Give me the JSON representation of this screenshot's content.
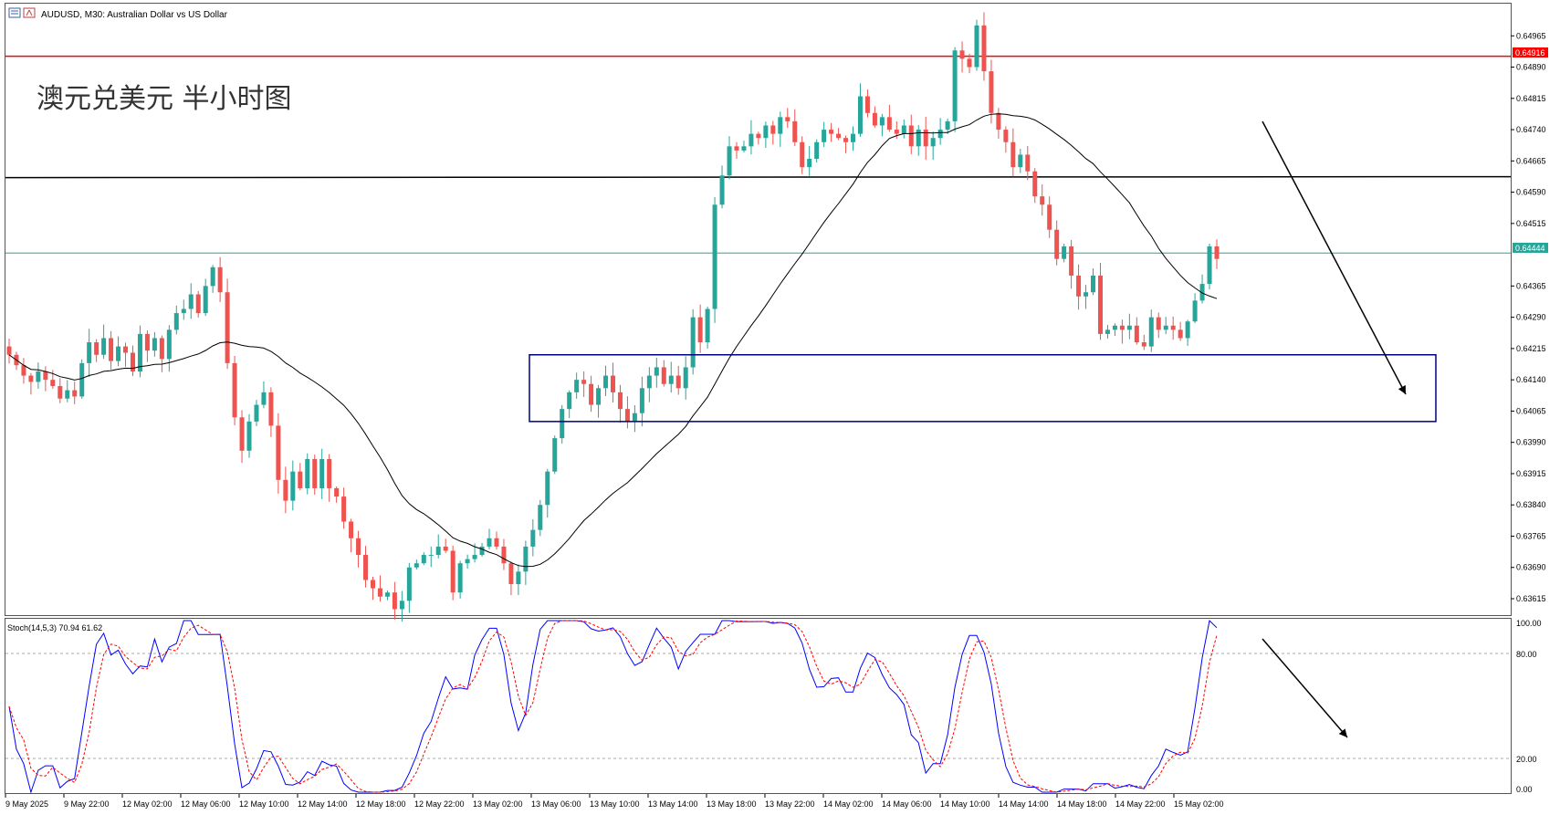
{
  "header": {
    "symbol_line": "AUDUSD, M30:  Australian Dollar vs US Dollar",
    "icon_name": "chart-window-icon"
  },
  "overlay_title": "澳元兑美元 半小时图",
  "indicator": {
    "label": "Stoch(14,5,3) 70.94 61.62",
    "k_color": "#0000ff",
    "d_color": "#ff0000",
    "levels": [
      80,
      20
    ],
    "axis_ticks": [
      "100.00",
      "80.00",
      "20.00",
      "0.00"
    ]
  },
  "price_axis": {
    "ticks": [
      "0.64965",
      "0.64890",
      "0.64815",
      "0.64740",
      "0.64665",
      "0.64590",
      "0.64515",
      "0.64365",
      "0.64290",
      "0.64215",
      "0.64140",
      "0.64065",
      "0.63990",
      "0.63915",
      "0.63840",
      "0.63765",
      "0.63690",
      "0.63615"
    ],
    "resistance_label": "0.64916",
    "current_label": "0.64444"
  },
  "time_axis": {
    "labels": [
      "9 May 2025",
      "9 May 22:00",
      "12 May 02:00",
      "12 May 06:00",
      "12 May 10:00",
      "12 May 14:00",
      "12 May 18:00",
      "12 May 22:00",
      "13 May 02:00",
      "13 May 06:00",
      "13 May 10:00",
      "13 May 14:00",
      "13 May 18:00",
      "13 May 22:00",
      "14 May 02:00",
      "14 May 06:00",
      "14 May 10:00",
      "14 May 14:00",
      "14 May 18:00",
      "14 May 22:00",
      "15 May 02:00"
    ]
  },
  "chart_data": {
    "type": "candlestick",
    "symbol": "AUDUSD",
    "timeframe": "M30",
    "colors": {
      "up": "#26a69a",
      "down": "#ef5350",
      "ma": "#000000",
      "resistance": "#ff0000",
      "current": "#26a69a",
      "box": "#000080",
      "arrow": "#000000"
    },
    "ylim": [
      0.6358,
      0.6504
    ],
    "levels": {
      "resistance": 0.64916,
      "black_line": 0.64625,
      "current": 0.64444
    },
    "box": {
      "top": 0.642,
      "bottom": 0.6404
    },
    "closes": [
      0.642,
      0.64175,
      0.6415,
      0.64135,
      0.6416,
      0.6414,
      0.64125,
      0.64095,
      0.64115,
      0.641,
      0.6418,
      0.6423,
      0.642,
      0.6424,
      0.64185,
      0.6422,
      0.64205,
      0.6416,
      0.6425,
      0.6421,
      0.6424,
      0.6419,
      0.6426,
      0.643,
      0.6431,
      0.64345,
      0.643,
      0.64365,
      0.6441,
      0.6435,
      0.6418,
      0.6405,
      0.6397,
      0.6404,
      0.6408,
      0.6411,
      0.6403,
      0.639,
      0.6385,
      0.6392,
      0.6388,
      0.6395,
      0.6388,
      0.6395,
      0.6388,
      0.6386,
      0.638,
      0.6376,
      0.6372,
      0.6366,
      0.6364,
      0.6362,
      0.6363,
      0.6359,
      0.6361,
      0.6369,
      0.637,
      0.6372,
      0.6372,
      0.6374,
      0.6373,
      0.6363,
      0.637,
      0.6371,
      0.6372,
      0.6374,
      0.6376,
      0.6374,
      0.637,
      0.6365,
      0.6368,
      0.6374,
      0.6378,
      0.6384,
      0.6392,
      0.64,
      0.6407,
      0.6411,
      0.6414,
      0.6413,
      0.6408,
      0.6412,
      0.6415,
      0.6411,
      0.6407,
      0.6404,
      0.6406,
      0.6412,
      0.6415,
      0.6417,
      0.6413,
      0.6415,
      0.6412,
      0.6417,
      0.6429,
      0.6423,
      0.6431,
      0.6456,
      0.6463,
      0.647,
      0.6469,
      0.647,
      0.6473,
      0.6472,
      0.6475,
      0.6473,
      0.6477,
      0.6476,
      0.6471,
      0.6465,
      0.6467,
      0.6471,
      0.6474,
      0.6473,
      0.6472,
      0.6471,
      0.6473,
      0.6482,
      0.6478,
      0.6475,
      0.6477,
      0.6474,
      0.6473,
      0.6475,
      0.647,
      0.6474,
      0.647,
      0.6472,
      0.6474,
      0.6476,
      0.6493,
      0.6491,
      0.6489,
      0.6499,
      0.6488,
      0.6478,
      0.6474,
      0.6471,
      0.6465,
      0.6468,
      0.6464,
      0.6458,
      0.6456,
      0.645,
      0.6443,
      0.6446,
      0.6439,
      0.6434,
      0.6435,
      0.6439,
      0.6425,
      0.6426,
      0.6427,
      0.6426,
      0.6427,
      0.6423,
      0.6422,
      0.6429,
      0.6426,
      0.6427,
      0.6426,
      0.6424,
      0.6428,
      0.6433,
      0.6437,
      0.6446,
      0.6443
    ]
  }
}
